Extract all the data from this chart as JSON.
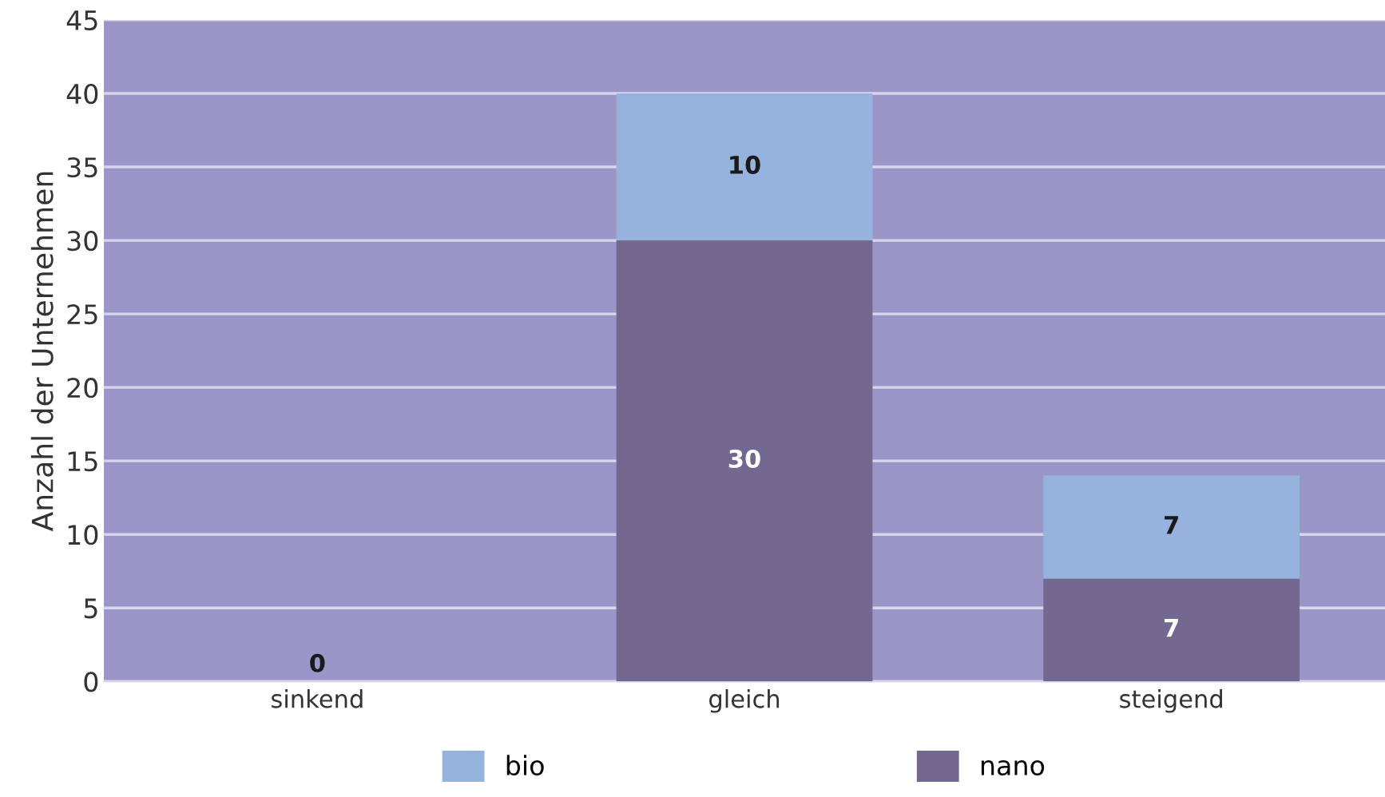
{
  "chart_data": {
    "type": "bar",
    "stacked": true,
    "ylabel": "Anzahl der Unternehmen",
    "categories": [
      "sinkend",
      "gleich",
      "steigend"
    ],
    "series": [
      {
        "name": "nano",
        "color": "#73688f",
        "values": [
          0,
          30,
          7
        ],
        "value_labels": [
          "0",
          "30",
          "7"
        ]
      },
      {
        "name": "bio",
        "color": "#95b3dd",
        "values": [
          0,
          10,
          7
        ],
        "value_labels": [
          null,
          "10",
          "7"
        ]
      }
    ],
    "ylim": [
      0,
      45
    ],
    "yticks": [
      0,
      5,
      10,
      15,
      20,
      25,
      30,
      35,
      40,
      45
    ],
    "grid": "y",
    "legend": "bottom"
  }
}
